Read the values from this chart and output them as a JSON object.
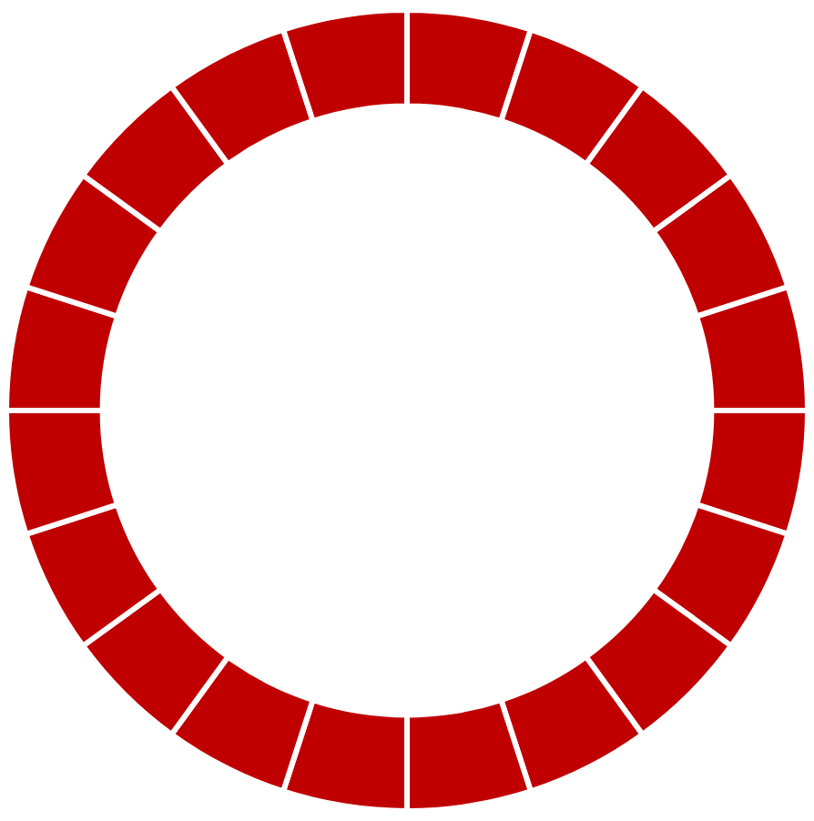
{
  "chart_data": {
    "type": "donut",
    "categories": [
      null,
      null,
      null,
      null,
      null,
      null,
      null,
      null,
      null,
      null,
      null,
      null,
      null,
      null,
      null,
      null,
      null,
      null,
      null,
      null
    ],
    "values": [
      5,
      5,
      5,
      5,
      5,
      5,
      5,
      5,
      5,
      5,
      5,
      5,
      5,
      5,
      5,
      5,
      5,
      5,
      5,
      5
    ],
    "colors": [
      "#c00000",
      "#c00000",
      "#c00000",
      "#c00000",
      "#c00000",
      "#c00000",
      "#c00000",
      "#c00000",
      "#c00000",
      "#c00000",
      "#c00000",
      "#c00000",
      "#c00000",
      "#c00000",
      "#c00000",
      "#c00000",
      "#c00000",
      "#c00000",
      "#c00000",
      "#c00000"
    ],
    "legend": false
  }
}
